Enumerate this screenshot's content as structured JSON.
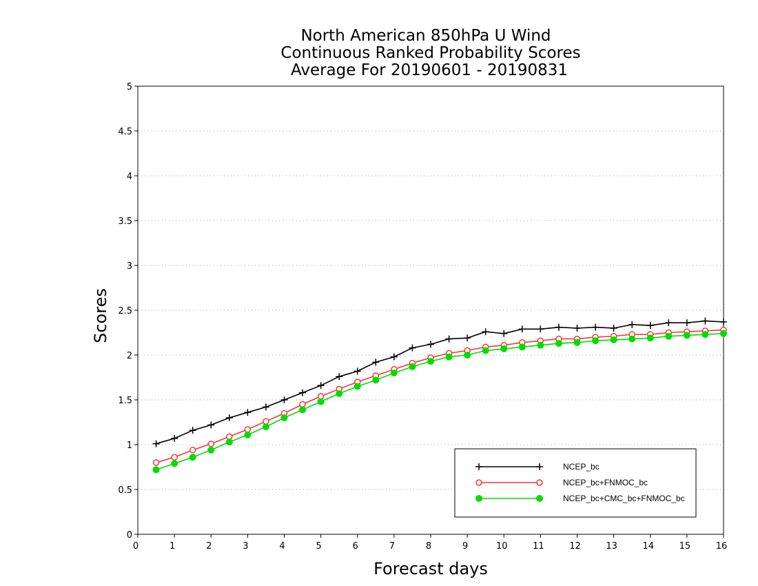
{
  "chart_data": {
    "type": "line",
    "title": [
      "North American 850hPa U Wind",
      "Continuous Ranked Probability Scores",
      "Average For 20190601 - 20190831"
    ],
    "xlabel": "Forecast days",
    "ylabel": "Scores",
    "xlim": [
      0,
      16
    ],
    "ylim": [
      0,
      5
    ],
    "xticks": [
      "0",
      "1",
      "2",
      "3",
      "4",
      "5",
      "6",
      "7",
      "8",
      "9",
      "10",
      "11",
      "12",
      "13",
      "14",
      "15",
      "16"
    ],
    "yticks": [
      "0",
      "0.5",
      "1",
      "1.5",
      "2",
      "2.5",
      "3",
      "3.5",
      "4",
      "4.5",
      "5"
    ],
    "grid": "horizontal dotted",
    "legend_position": "bottom-right",
    "x": [
      0.5,
      1,
      1.5,
      2,
      2.5,
      3,
      3.5,
      4,
      4.5,
      5,
      5.5,
      6,
      6.5,
      7,
      7.5,
      8,
      8.5,
      9,
      9.5,
      10,
      10.5,
      11,
      11.5,
      12,
      12.5,
      13,
      13.5,
      14,
      14.5,
      15,
      15.5,
      16
    ],
    "series": [
      {
        "name": "NCEP_bc",
        "color": "#000000",
        "marker": "plus",
        "values": [
          1.01,
          1.07,
          1.16,
          1.22,
          1.3,
          1.36,
          1.42,
          1.5,
          1.58,
          1.66,
          1.76,
          1.82,
          1.92,
          1.98,
          2.08,
          2.12,
          2.18,
          2.19,
          2.26,
          2.24,
          2.29,
          2.29,
          2.31,
          2.3,
          2.31,
          2.3,
          2.34,
          2.33,
          2.36,
          2.36,
          2.38,
          2.37
        ]
      },
      {
        "name": "NCEP_bc+FNMOC_bc",
        "color": "#ff3333",
        "marker": "open-circle",
        "values": [
          0.8,
          0.86,
          0.94,
          1.01,
          1.09,
          1.17,
          1.26,
          1.35,
          1.45,
          1.54,
          1.62,
          1.7,
          1.77,
          1.84,
          1.91,
          1.97,
          2.02,
          2.05,
          2.09,
          2.11,
          2.14,
          2.16,
          2.18,
          2.18,
          2.2,
          2.21,
          2.23,
          2.23,
          2.25,
          2.26,
          2.27,
          2.28
        ]
      },
      {
        "name": "NCEP_bc+CMC_bc+FNMOC_bc",
        "color": "#00dd00",
        "marker": "filled-circle",
        "values": [
          0.72,
          0.79,
          0.86,
          0.94,
          1.03,
          1.11,
          1.2,
          1.3,
          1.39,
          1.48,
          1.57,
          1.65,
          1.72,
          1.8,
          1.87,
          1.93,
          1.98,
          2.0,
          2.05,
          2.07,
          2.09,
          2.11,
          2.13,
          2.14,
          2.16,
          2.17,
          2.18,
          2.19,
          2.21,
          2.22,
          2.23,
          2.24
        ]
      }
    ]
  }
}
